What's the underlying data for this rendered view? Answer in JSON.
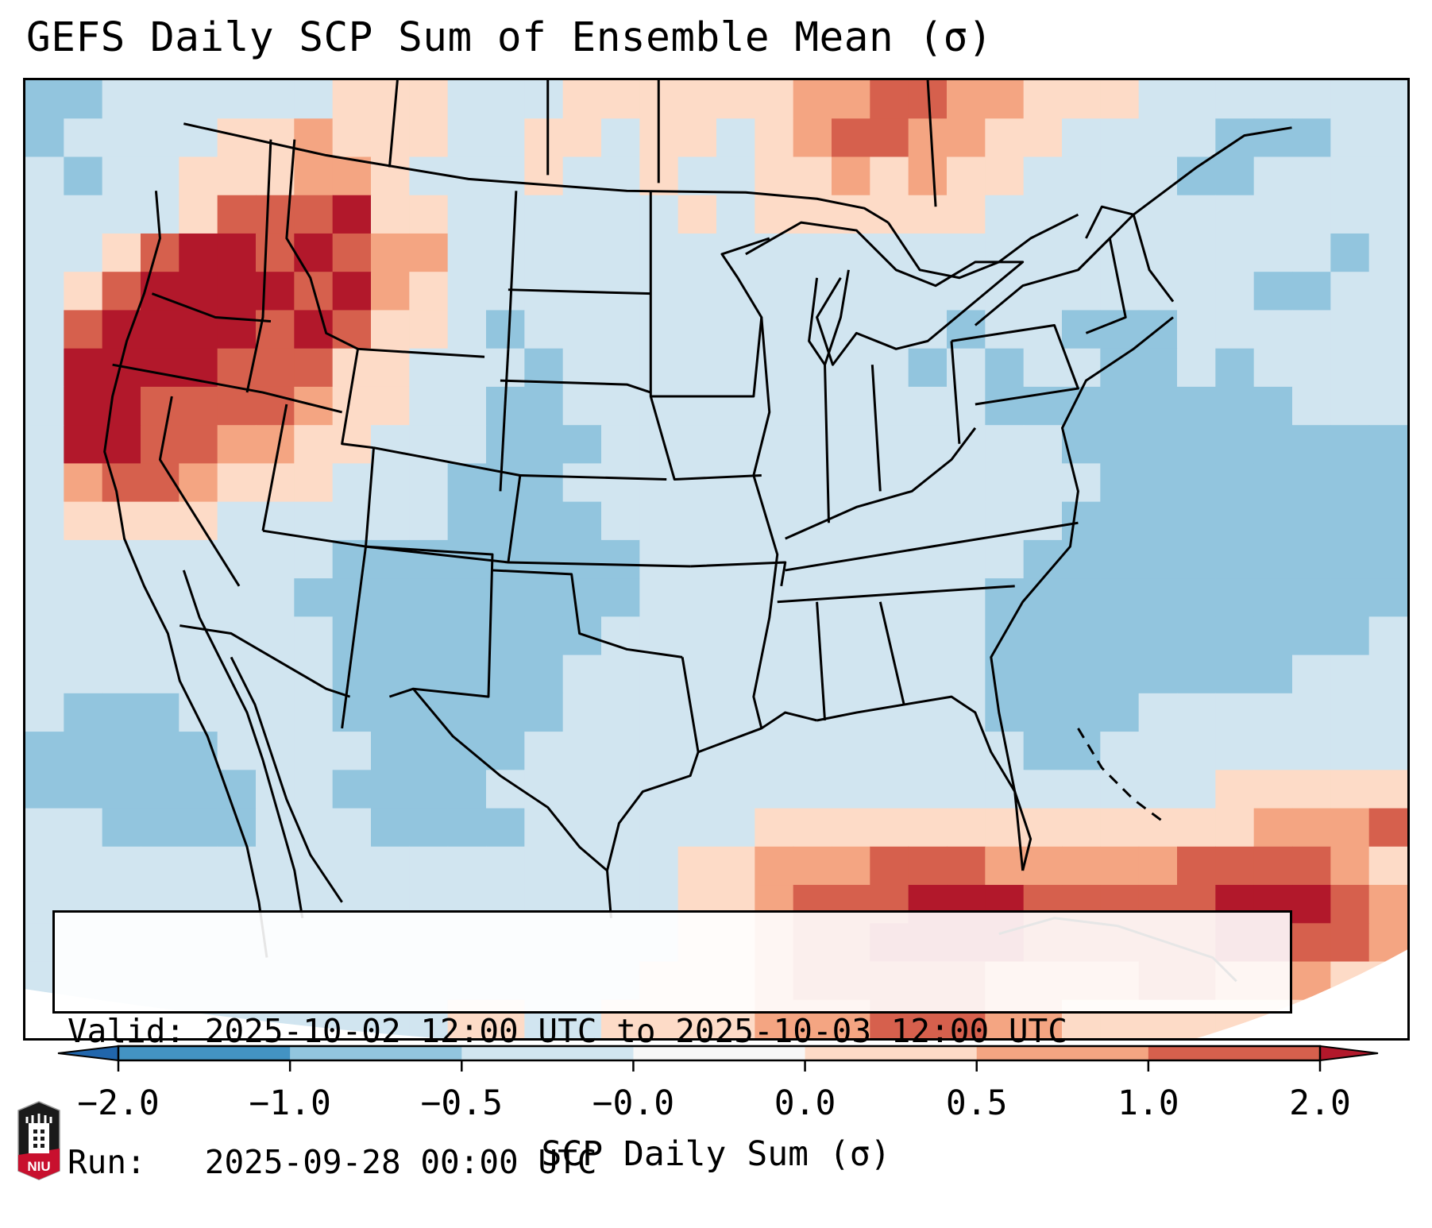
{
  "title": "GEFS Daily SCP Sum of Ensemble Mean (σ)",
  "info_box": {
    "valid_line": "Valid: 2025-10-02 12:00 UTC to 2025-10-03 12:00 UTC",
    "run_line": "Run:   2025-09-28 00:00 UTC"
  },
  "colorbar": {
    "label": "SCP Daily Sum (σ)",
    "ticks": [
      "−2.0",
      "−1.0",
      "−0.5",
      "−0.0",
      "0.0",
      "0.5",
      "1.0",
      "2.0"
    ],
    "bins": [
      {
        "range": "< -2.0",
        "color": "#2166ac"
      },
      {
        "range": "-2.0 to -1.0",
        "color": "#4393c3"
      },
      {
        "range": "-1.0 to -0.5",
        "color": "#92c5de"
      },
      {
        "range": "-0.5 to -0.0",
        "color": "#d1e5f0"
      },
      {
        "range": "-0.0 to 0.0",
        "color": "#f7f7f7"
      },
      {
        "range": "0.0 to 0.5",
        "color": "#fddbc7"
      },
      {
        "range": "0.5 to 1.0",
        "color": "#f4a582"
      },
      {
        "range": "1.0 to 2.0",
        "color": "#d6604d"
      },
      {
        "range": "> 2.0",
        "color": "#b2182b"
      }
    ],
    "extend": "both"
  },
  "logo": {
    "text": "NIU",
    "brand_color": "#c8102e"
  },
  "chart_data": {
    "type": "heatmap",
    "title": "GEFS Daily SCP Sum of Ensemble Mean (σ)",
    "colorbar_label": "SCP Daily Sum (σ)",
    "projection": "Lambert Conformal, CONUS",
    "levels": [
      -2.0,
      -1.0,
      -0.5,
      -0.0,
      0.0,
      0.5,
      1.0,
      2.0
    ],
    "legend_placement": "bottom",
    "grid_note": "Coarse approximation of displayed field on a 36x25 lat/lon-like grid; values are color-bin indices 0..8 (0: < -2, 1: -2..-1, 2: -1..-0.5, 3: -0.5..0, 4: ~0, 5: 0..0.5, 6: 0.5..1, 7: 1..2, 8: > 2)",
    "grid": [
      "223333335553335555556677665553333333",
      "233335565553355355356776655333322233",
      "323355566533353353355656553333223333",
      "333357778553333335355555533333333333",
      "335788787663333333333333333333333323",
      "357888878653333333333333333333332233",
      "378888787553233333333333233222333333",
      "388887775533323333333332323322323333",
      "388777765533223333333333322222222333",
      "388776655333222333333333333222222222",
      "367765553332223333333333333322222222",
      "355553333332222333333333333222222222",
      "333333332222222233333333332222222222",
      "333333322222222233333333322222222222",
      "333333332222222333333333322222222223",
      "333333332222223333333333322222222333",
      "322233332222223333333333322223333333",
      "222223333222233333333333332233333333",
      "222222332222333333333333333333355555",
      "332222333222233333355555555555556667",
      "333333333333333335566677766666777765",
      "333333333333333335567778887777788876",
      "333333333333333335567788887777788776",
      "333333333333333355567777766667766655",
      "333333333335533555566677766555555533"
    ]
  }
}
